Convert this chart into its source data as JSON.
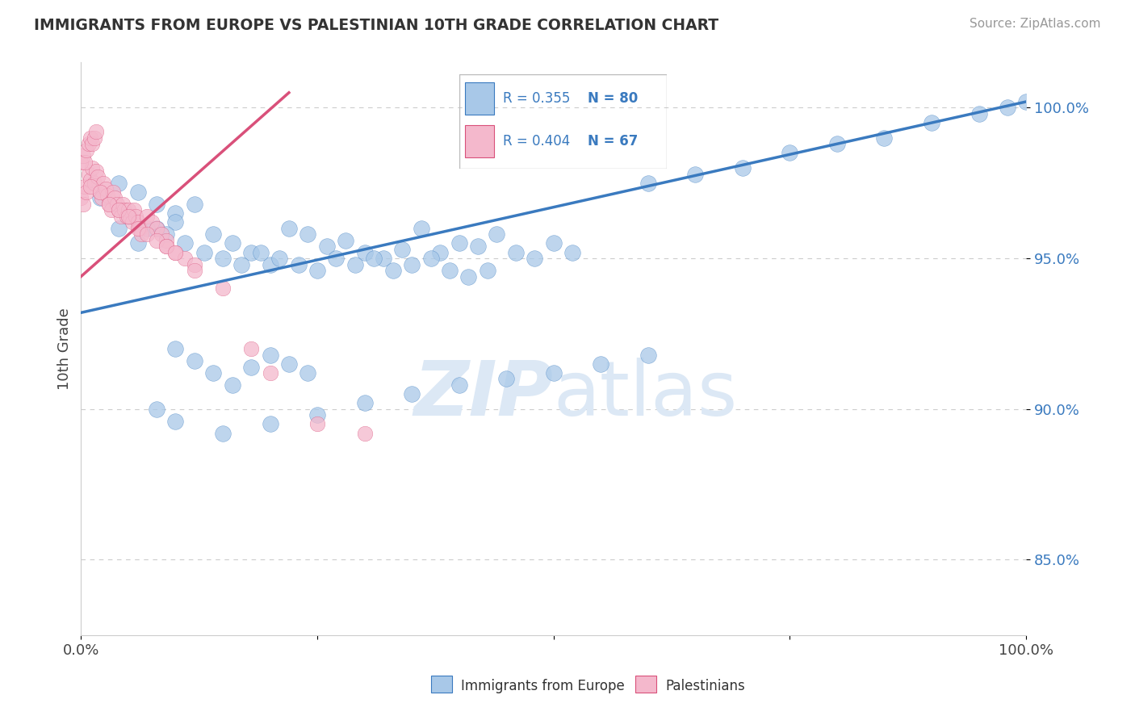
{
  "title": "IMMIGRANTS FROM EUROPE VS PALESTINIAN 10TH GRADE CORRELATION CHART",
  "source": "Source: ZipAtlas.com",
  "ylabel": "10th Grade",
  "xlim": [
    0.0,
    1.0
  ],
  "ylim": [
    0.825,
    1.015
  ],
  "blue_R": 0.355,
  "blue_N": 80,
  "pink_R": 0.404,
  "pink_N": 67,
  "legend_label_blue": "Immigrants from Europe",
  "legend_label_pink": "Palestinians",
  "blue_color": "#a8c8e8",
  "pink_color": "#f4b8cc",
  "blue_line_color": "#3a7abf",
  "pink_line_color": "#d9507a",
  "text_color": "#3a7abf",
  "watermark_color": "#dce8f5",
  "grid_color": "#cccccc",
  "blue_line_x0": 0.0,
  "blue_line_y0": 0.932,
  "blue_line_x1": 1.0,
  "blue_line_y1": 1.002,
  "pink_line_x0": 0.0,
  "pink_line_y0": 0.944,
  "pink_line_x1": 0.22,
  "pink_line_y1": 1.005,
  "blue_x": [
    0.02,
    0.04,
    0.06,
    0.08,
    0.1,
    0.04,
    0.06,
    0.08,
    0.1,
    0.12,
    0.14,
    0.16,
    0.18,
    0.2,
    0.22,
    0.24,
    0.26,
    0.28,
    0.3,
    0.32,
    0.34,
    0.36,
    0.38,
    0.4,
    0.42,
    0.44,
    0.46,
    0.48,
    0.5,
    0.52,
    0.05,
    0.07,
    0.09,
    0.11,
    0.13,
    0.15,
    0.17,
    0.19,
    0.21,
    0.23,
    0.25,
    0.27,
    0.29,
    0.31,
    0.33,
    0.35,
    0.37,
    0.39,
    0.41,
    0.43,
    0.6,
    0.65,
    0.7,
    0.75,
    0.8,
    0.85,
    0.9,
    0.95,
    0.98,
    1.0,
    0.1,
    0.12,
    0.14,
    0.16,
    0.18,
    0.2,
    0.22,
    0.24,
    0.08,
    0.1,
    0.15,
    0.2,
    0.25,
    0.3,
    0.35,
    0.4,
    0.45,
    0.5,
    0.55,
    0.6
  ],
  "blue_y": [
    0.97,
    0.975,
    0.972,
    0.968,
    0.965,
    0.96,
    0.955,
    0.96,
    0.962,
    0.968,
    0.958,
    0.955,
    0.952,
    0.948,
    0.96,
    0.958,
    0.954,
    0.956,
    0.952,
    0.95,
    0.953,
    0.96,
    0.952,
    0.955,
    0.954,
    0.958,
    0.952,
    0.95,
    0.955,
    0.952,
    0.964,
    0.96,
    0.958,
    0.955,
    0.952,
    0.95,
    0.948,
    0.952,
    0.95,
    0.948,
    0.946,
    0.95,
    0.948,
    0.95,
    0.946,
    0.948,
    0.95,
    0.946,
    0.944,
    0.946,
    0.975,
    0.978,
    0.98,
    0.985,
    0.988,
    0.99,
    0.995,
    0.998,
    1.0,
    1.002,
    0.92,
    0.916,
    0.912,
    0.908,
    0.914,
    0.918,
    0.915,
    0.912,
    0.9,
    0.896,
    0.892,
    0.895,
    0.898,
    0.902,
    0.905,
    0.908,
    0.91,
    0.912,
    0.915,
    0.918
  ],
  "pink_x": [
    0.0,
    0.002,
    0.004,
    0.006,
    0.008,
    0.01,
    0.012,
    0.014,
    0.016,
    0.018,
    0.02,
    0.022,
    0.024,
    0.026,
    0.028,
    0.03,
    0.032,
    0.034,
    0.036,
    0.038,
    0.04,
    0.042,
    0.044,
    0.046,
    0.048,
    0.05,
    0.052,
    0.054,
    0.056,
    0.058,
    0.06,
    0.062,
    0.064,
    0.07,
    0.075,
    0.08,
    0.085,
    0.09,
    0.01,
    0.02,
    0.03,
    0.04,
    0.05,
    0.06,
    0.07,
    0.08,
    0.09,
    0.1,
    0.11,
    0.12,
    0.0,
    0.002,
    0.004,
    0.006,
    0.008,
    0.01,
    0.012,
    0.014,
    0.016,
    0.09,
    0.1,
    0.12,
    0.15,
    0.18,
    0.2,
    0.25,
    0.3
  ],
  "pink_y": [
    0.97,
    0.968,
    0.974,
    0.972,
    0.978,
    0.976,
    0.98,
    0.975,
    0.979,
    0.977,
    0.972,
    0.97,
    0.975,
    0.973,
    0.971,
    0.968,
    0.966,
    0.972,
    0.97,
    0.968,
    0.966,
    0.964,
    0.968,
    0.966,
    0.964,
    0.966,
    0.964,
    0.962,
    0.966,
    0.964,
    0.962,
    0.96,
    0.958,
    0.964,
    0.962,
    0.96,
    0.958,
    0.956,
    0.974,
    0.972,
    0.968,
    0.966,
    0.964,
    0.96,
    0.958,
    0.956,
    0.954,
    0.952,
    0.95,
    0.948,
    0.982,
    0.984,
    0.982,
    0.986,
    0.988,
    0.99,
    0.988,
    0.99,
    0.992,
    0.954,
    0.952,
    0.946,
    0.94,
    0.92,
    0.912,
    0.895,
    0.892
  ]
}
